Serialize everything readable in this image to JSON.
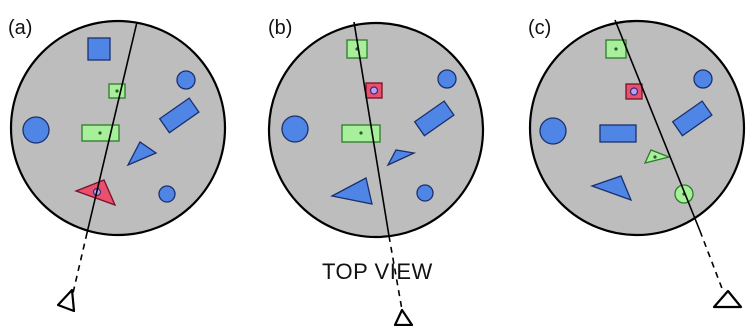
{
  "panels": [
    {
      "id": "a",
      "label": "(a)"
    },
    {
      "id": "b",
      "label": "(b)"
    },
    {
      "id": "c",
      "label": "(c)"
    }
  ],
  "caption": "TOP VIEW",
  "colors": {
    "table": "#bdbdbd",
    "distractor": "#4f86e6",
    "candidate": "#a8ef9c",
    "target": "#e8506e"
  }
}
